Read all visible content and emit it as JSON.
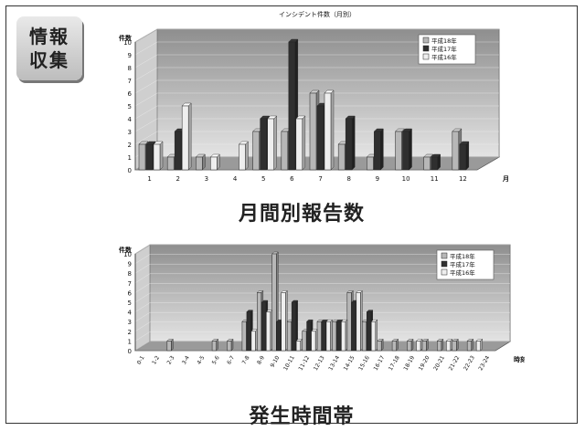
{
  "badge": {
    "line1": "情報",
    "line2": "収集"
  },
  "colors": {
    "series1": "#b7b7b7",
    "series2": "#2f2f2f",
    "series3": "#eeeeee",
    "panel_top": "#8e8e8e",
    "panel_bottom": "#e4e4e4"
  },
  "chart_data": [
    {
      "type": "bar",
      "title": "インシデント件数（月別）",
      "caption": "月間別報告数",
      "ylabel": "件数",
      "xlabel": "月",
      "ylim": [
        0,
        10
      ],
      "yticks": [
        "0",
        "1",
        "2",
        "3",
        "4",
        "5",
        "6",
        "7",
        "8",
        "9",
        "10"
      ],
      "categories": [
        "1",
        "2",
        "3",
        "4",
        "5",
        "6",
        "7",
        "8",
        "9",
        "10",
        "11",
        "12"
      ],
      "legend": [
        "平成18年",
        "平成17年",
        "平成16年"
      ],
      "series": [
        {
          "name": "平成18年",
          "values": [
            2,
            1,
            1,
            0,
            3,
            3,
            6,
            2,
            1,
            3,
            1,
            3
          ]
        },
        {
          "name": "平成17年",
          "values": [
            2,
            3,
            0,
            0,
            4,
            10,
            5,
            4,
            3,
            3,
            1,
            2
          ]
        },
        {
          "name": "平成16年",
          "values": [
            2,
            5,
            1,
            2,
            4,
            4,
            6,
            0,
            0,
            0,
            0,
            0
          ]
        }
      ]
    },
    {
      "type": "bar",
      "caption": "発生時間帯",
      "ylabel": "件数",
      "xlabel": "時刻",
      "ylim": [
        0,
        10
      ],
      "yticks": [
        "0",
        "1",
        "2",
        "3",
        "4",
        "5",
        "6",
        "7",
        "8",
        "9",
        "10"
      ],
      "categories": [
        "0-1",
        "1-2",
        "2-3",
        "3-4",
        "4-5",
        "5-6",
        "6-7",
        "7-8",
        "8-9",
        "9-10",
        "10-11",
        "11-12",
        "12-13",
        "13-14",
        "14-15",
        "15-16",
        "16-17",
        "17-18",
        "18-19",
        "19-20",
        "20-21",
        "21-22",
        "22-23",
        "23-24"
      ],
      "legend": [
        "平成18年",
        "平成17年",
        "平成16年"
      ],
      "series": [
        {
          "name": "平成18年",
          "values": [
            0,
            0,
            1,
            0,
            0,
            1,
            1,
            3,
            6,
            10,
            3,
            2,
            3,
            3,
            6,
            3,
            1,
            1,
            1,
            1,
            1,
            1,
            1,
            0
          ]
        },
        {
          "name": "平成17年",
          "values": [
            0,
            0,
            0,
            0,
            0,
            0,
            0,
            4,
            5,
            3,
            5,
            3,
            3,
            3,
            5,
            4,
            0,
            0,
            0,
            0,
            0,
            0,
            0,
            0
          ]
        },
        {
          "name": "平成16年",
          "values": [
            0,
            0,
            0,
            0,
            0,
            0,
            0,
            2,
            4,
            6,
            1,
            2,
            3,
            3,
            6,
            3,
            0,
            0,
            1,
            0,
            1,
            0,
            1,
            0
          ]
        }
      ]
    }
  ]
}
